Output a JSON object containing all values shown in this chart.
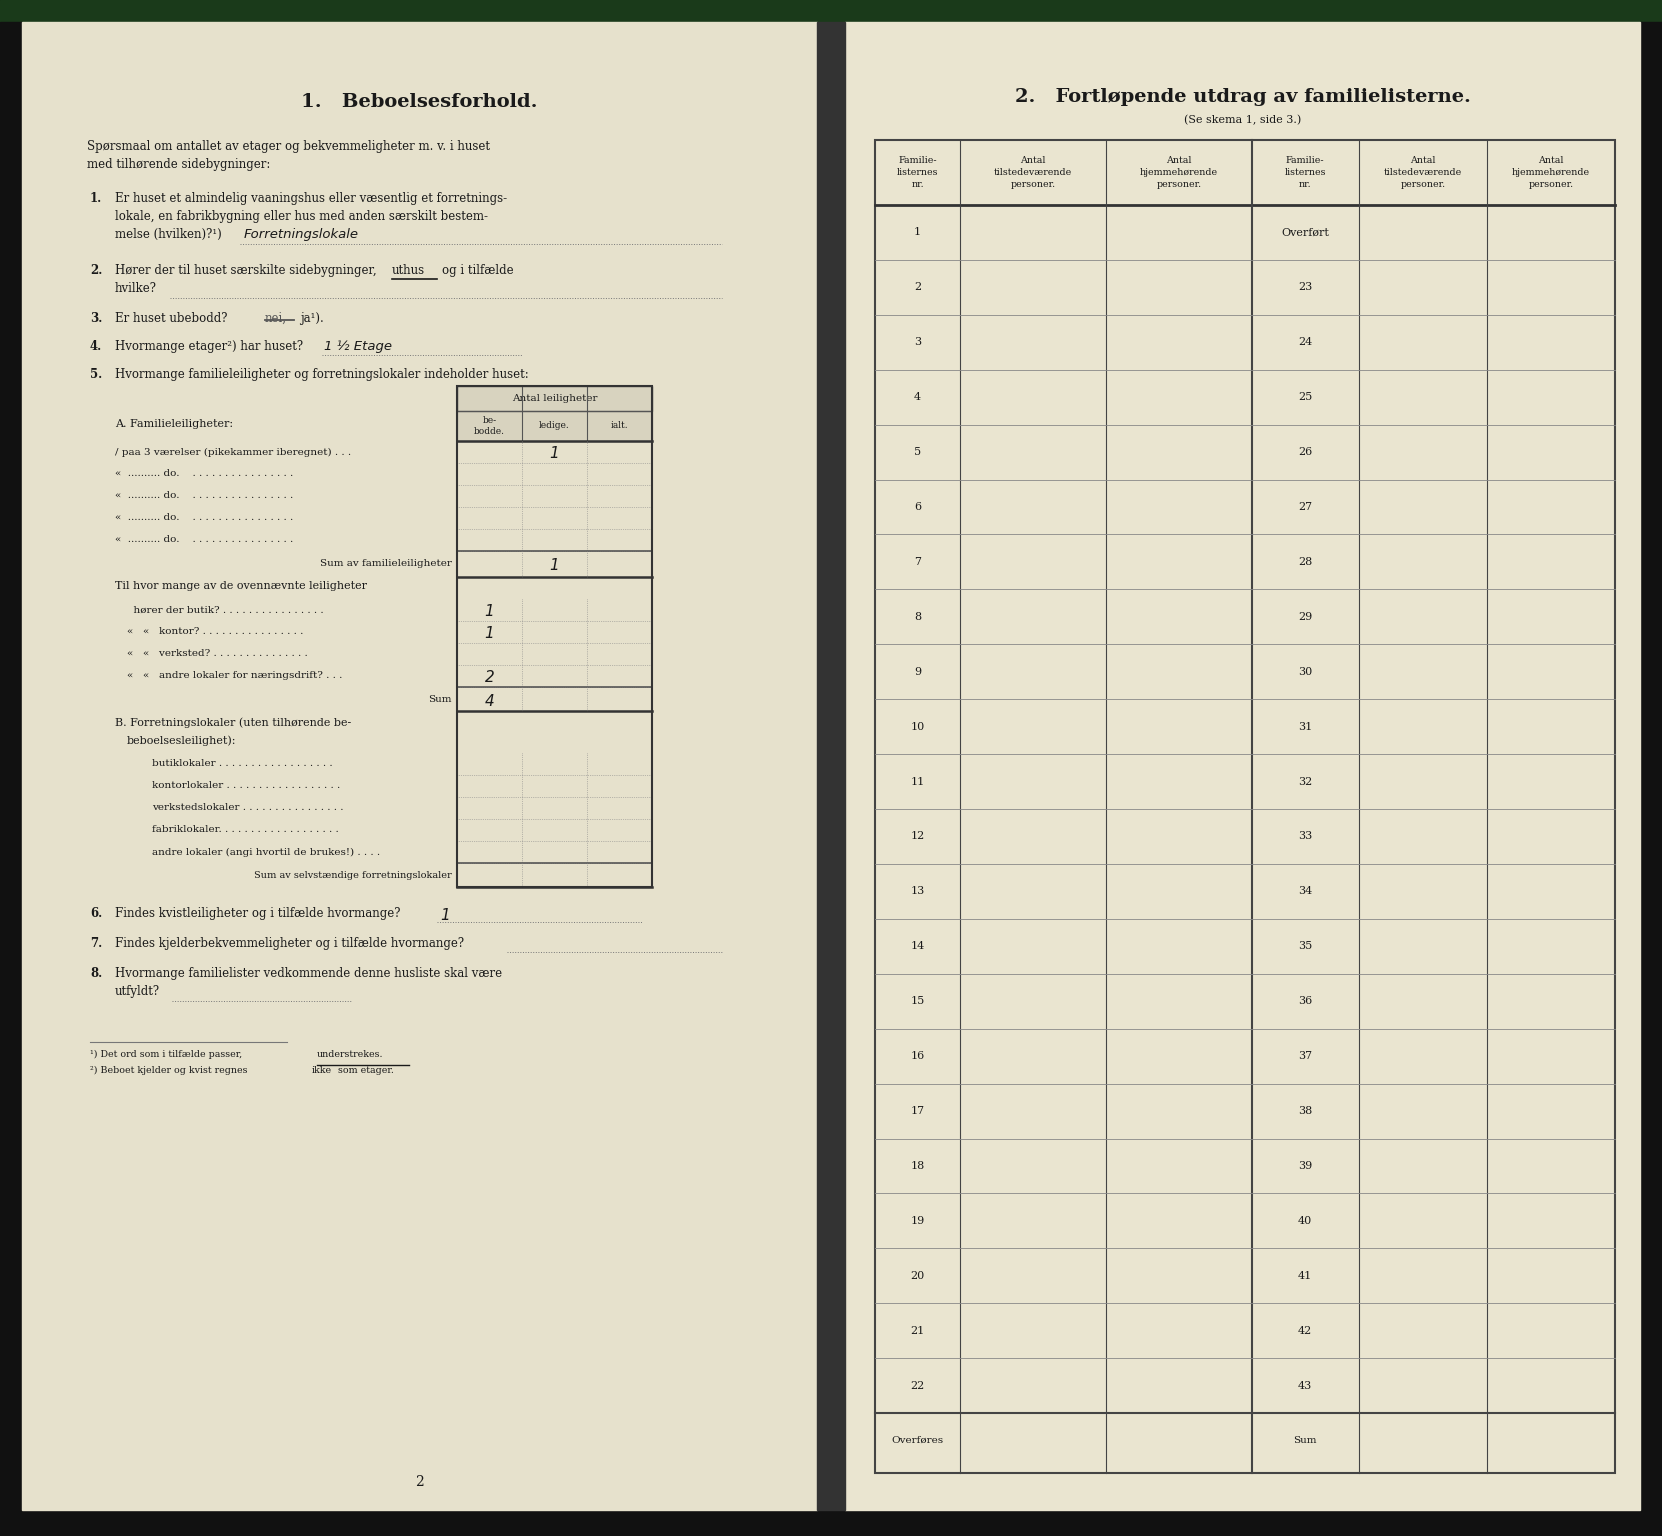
{
  "title_left": "1.   Beboelsesforhold.",
  "title_right": "2.   Fortløpende utdrag av familielisterne.",
  "subtitle_right": "(Se skema 1, side 3.)",
  "right_col_headers": [
    "Familie-\nlisternes\nnr.",
    "Antal\ntilstedeværende\npersoner.",
    "Antal\nhjemmehørende\npersoner.",
    "Familie-\nlisternes\nnr.",
    "Antal\ntilstedeværende\npersoner.",
    "Antal\nhjemmehørende\npersoner."
  ],
  "right_rows_left": [
    "1",
    "2",
    "3",
    "4",
    "5",
    "6",
    "7",
    "8",
    "9",
    "10",
    "11",
    "12",
    "13",
    "14",
    "15",
    "16",
    "17",
    "18",
    "19",
    "20",
    "21",
    "22"
  ],
  "right_rows_right": [
    "Overført",
    "23",
    "24",
    "25",
    "26",
    "27",
    "28",
    "29",
    "30",
    "31",
    "32",
    "33",
    "34",
    "35",
    "36",
    "37",
    "38",
    "39",
    "40",
    "41",
    "42",
    "43"
  ],
  "right_bottom_left": "Overføres",
  "right_bottom_right": "Sum",
  "page_color_left": "#e6e1cc",
  "page_color_right": "#eae5d0",
  "bg_dark": "#111111",
  "spine_color": "#1a3a1a",
  "top_bar_color": "#1a3a1a"
}
